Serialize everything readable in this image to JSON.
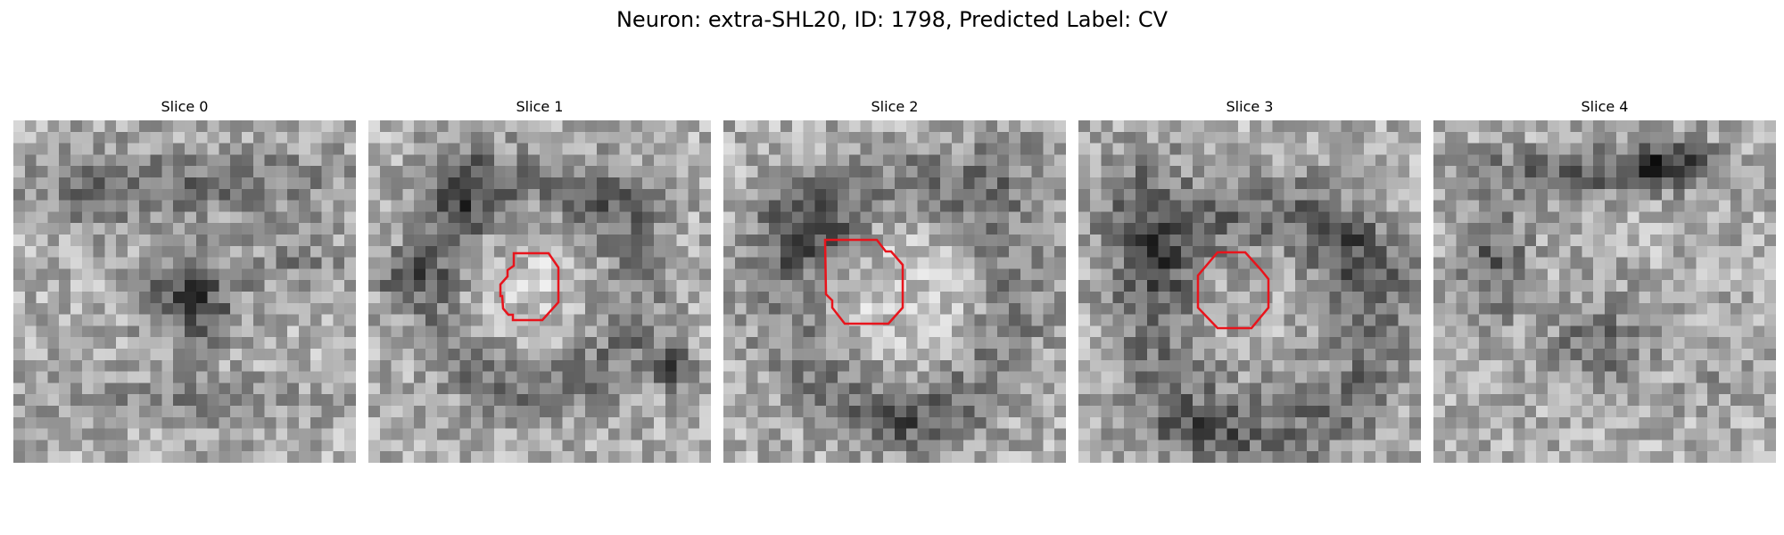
{
  "figure": {
    "title": "Neuron: extra-SHL20, ID: 1798, Predicted Label: CV"
  },
  "panels": [
    {
      "title": "Slice 0",
      "has_contour": false
    },
    {
      "title": "Slice 1",
      "has_contour": true
    },
    {
      "title": "Slice 2",
      "has_contour": true
    },
    {
      "title": "Slice 3",
      "has_contour": true
    },
    {
      "title": "Slice 4",
      "has_contour": false
    }
  ],
  "colors": {
    "contour": "#e8141c",
    "background": "#ffffff"
  }
}
